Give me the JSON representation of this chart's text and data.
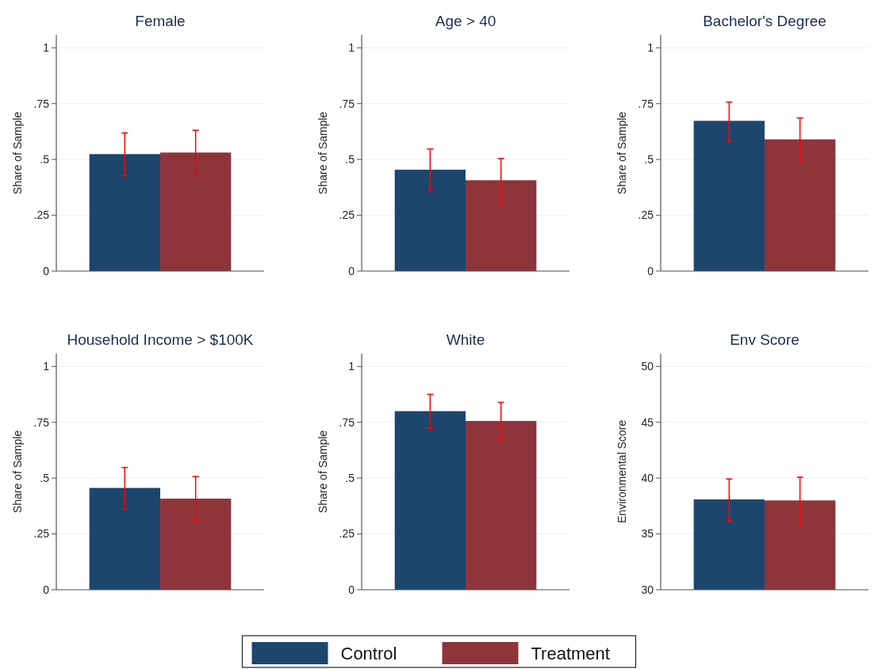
{
  "chart_data": [
    {
      "type": "bar",
      "title": "Female",
      "ylabel": "Share of Sample",
      "categories": [
        null
      ],
      "ylim": [
        0,
        1.058
      ],
      "yticks": [
        0,
        {
          "value": 0.25,
          "label": ".25"
        },
        {
          "value": 0.5,
          "label": ".5"
        },
        {
          "value": 0.75,
          "label": ".75"
        },
        1
      ],
      "grid": "y",
      "legend": "bottom",
      "series": [
        {
          "name": "Control",
          "color": "#1c466e",
          "values": [
            0.524
          ],
          "errors": [
            [
              0.427,
              0.619
            ]
          ]
        },
        {
          "name": "Treatment",
          "color": "#8e353b",
          "values": [
            0.531
          ],
          "errors": [
            [
              0.43,
              0.631
            ]
          ]
        }
      ]
    },
    {
      "type": "bar",
      "title": "Age > 40",
      "ylabel": "Share of Sample",
      "categories": [
        null
      ],
      "ylim": [
        0,
        1.058
      ],
      "yticks": [
        0,
        {
          "value": 0.25,
          "label": ".25"
        },
        {
          "value": 0.5,
          "label": ".5"
        },
        {
          "value": 0.75,
          "label": ".75"
        },
        1
      ],
      "grid": "y",
      "series": [
        {
          "color": "#1c466e",
          "values": [
            0.454
          ],
          "errors": [
            [
              0.36,
              0.547
            ]
          ]
        },
        {
          "color": "#8e353b",
          "values": [
            0.407
          ],
          "errors": [
            [
              0.309,
              0.504
            ]
          ]
        }
      ]
    },
    {
      "type": "bar",
      "title": "Bachelor's Degree",
      "ylabel": "Share of Sample",
      "categories": [
        null
      ],
      "ylim": [
        0,
        1.058
      ],
      "yticks": [
        0,
        {
          "value": 0.25,
          "label": ".25"
        },
        {
          "value": 0.5,
          "label": ".5"
        },
        {
          "value": 0.75,
          "label": ".75"
        },
        1
      ],
      "grid": "y",
      "series": [
        {
          "color": "#1c466e",
          "values": [
            0.673
          ],
          "errors": [
            [
              0.583,
              0.757
            ]
          ]
        },
        {
          "color": "#8e353b",
          "values": [
            0.59
          ],
          "errors": [
            [
              0.492,
              0.686
            ]
          ]
        }
      ]
    },
    {
      "type": "bar",
      "title": "Household Income > $100K",
      "ylabel": "Share of Sample",
      "categories": [
        null
      ],
      "ylim": [
        0,
        1.058
      ],
      "yticks": [
        0,
        {
          "value": 0.25,
          "label": ".25"
        },
        {
          "value": 0.5,
          "label": ".5"
        },
        {
          "value": 0.75,
          "label": ".75"
        },
        1
      ],
      "grid": "y",
      "series": [
        {
          "color": "#1c466e",
          "values": [
            0.456
          ],
          "errors": [
            [
              0.36,
              0.548
            ]
          ]
        },
        {
          "color": "#8e353b",
          "values": [
            0.408
          ],
          "errors": [
            [
              0.309,
              0.507
            ]
          ]
        }
      ]
    },
    {
      "type": "bar",
      "title": "White",
      "ylabel": "Share of Sample",
      "categories": [
        null
      ],
      "ylim": [
        0,
        1.058
      ],
      "yticks": [
        0,
        {
          "value": 0.25,
          "label": ".25"
        },
        {
          "value": 0.5,
          "label": ".5"
        },
        {
          "value": 0.75,
          "label": ".75"
        },
        1
      ],
      "grid": "y",
      "series": [
        {
          "color": "#1c466e",
          "values": [
            0.8
          ],
          "errors": [
            [
              0.723,
              0.875
            ]
          ]
        },
        {
          "color": "#8e353b",
          "values": [
            0.756
          ],
          "errors": [
            [
              0.667,
              0.84
            ]
          ]
        }
      ]
    },
    {
      "type": "bar",
      "title": "Env Score",
      "ylabel": "Environmental Score",
      "categories": [
        null
      ],
      "ylim": [
        30,
        51.16
      ],
      "yticks": [
        30,
        35,
        40,
        45,
        50
      ],
      "grid": "y",
      "series": [
        {
          "color": "#1c466e",
          "values": [
            38.09
          ],
          "errors": [
            [
              36.2,
              39.92
            ]
          ]
        },
        {
          "color": "#8e353b",
          "values": [
            38.0
          ],
          "errors": [
            [
              35.9,
              40.08
            ]
          ]
        }
      ]
    }
  ]
}
